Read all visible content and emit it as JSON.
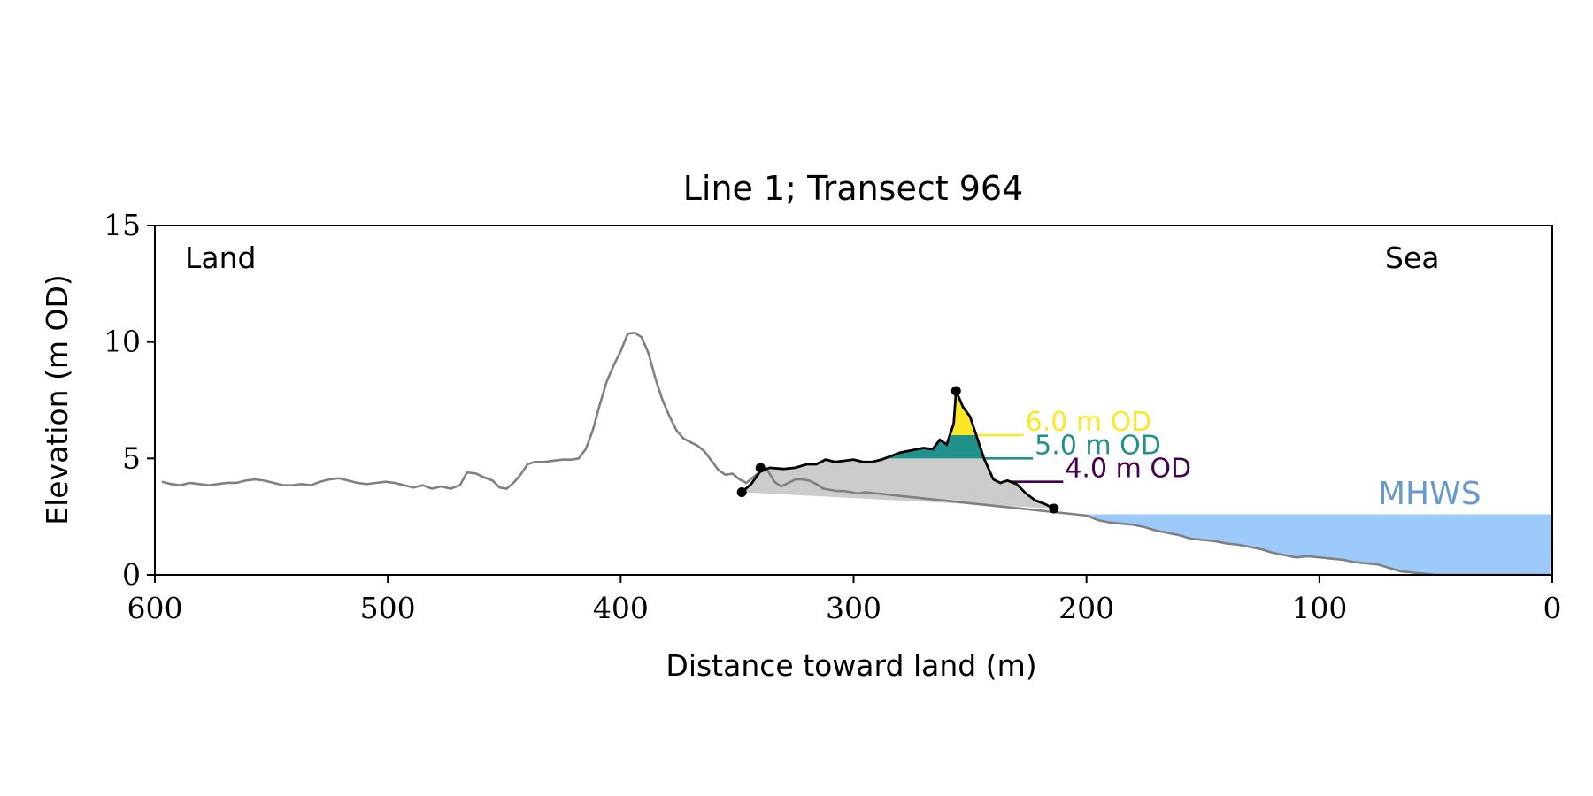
{
  "chart_data": {
    "type": "area",
    "title": "Line 1; Transect 964",
    "xlabel": "Distance toward land (m)",
    "ylabel": "Elevation (m OD)",
    "xlim": [
      600,
      0
    ],
    "ylim": [
      0,
      15
    ],
    "x_reversed": true,
    "grid": false,
    "xticks": [
      600,
      500,
      400,
      300,
      200,
      100,
      0
    ],
    "yticks": [
      0,
      5,
      10,
      15
    ],
    "corner_labels": {
      "left": "Land",
      "right": "Sea"
    },
    "mhws": {
      "label": "MHWS",
      "elevation": 2.6,
      "x_from": 200,
      "x_to": 0,
      "color": "#9ccafb",
      "label_color": "#6699cc"
    },
    "profile_color": "#808080",
    "profile": [
      [
        597,
        4.0
      ],
      [
        593,
        3.9
      ],
      [
        589,
        3.85
      ],
      [
        585,
        3.95
      ],
      [
        581,
        3.9
      ],
      [
        577,
        3.85
      ],
      [
        573,
        3.9
      ],
      [
        569,
        3.95
      ],
      [
        565,
        3.95
      ],
      [
        561,
        4.05
      ],
      [
        557,
        4.1
      ],
      [
        553,
        4.05
      ],
      [
        549,
        3.95
      ],
      [
        545,
        3.85
      ],
      [
        541,
        3.85
      ],
      [
        537,
        3.9
      ],
      [
        533,
        3.85
      ],
      [
        529,
        4.0
      ],
      [
        525,
        4.1
      ],
      [
        521,
        4.15
      ],
      [
        517,
        4.05
      ],
      [
        513,
        3.95
      ],
      [
        509,
        3.9
      ],
      [
        505,
        3.95
      ],
      [
        501,
        4.0
      ],
      [
        497,
        3.95
      ],
      [
        493,
        3.85
      ],
      [
        489,
        3.75
      ],
      [
        485,
        3.85
      ],
      [
        481,
        3.7
      ],
      [
        477,
        3.8
      ],
      [
        473,
        3.7
      ],
      [
        469,
        3.85
      ],
      [
        466,
        4.4
      ],
      [
        462,
        4.35
      ],
      [
        459,
        4.2
      ],
      [
        455,
        4.05
      ],
      [
        452,
        3.75
      ],
      [
        449,
        3.7
      ],
      [
        446,
        3.95
      ],
      [
        443,
        4.3
      ],
      [
        440,
        4.75
      ],
      [
        437,
        4.85
      ],
      [
        433,
        4.85
      ],
      [
        429,
        4.9
      ],
      [
        425,
        4.95
      ],
      [
        421,
        4.95
      ],
      [
        418,
        5.0
      ],
      [
        415,
        5.4
      ],
      [
        412,
        6.2
      ],
      [
        409,
        7.3
      ],
      [
        406,
        8.3
      ],
      [
        403,
        9.0
      ],
      [
        400,
        9.6
      ],
      [
        397,
        10.35
      ],
      [
        394,
        10.4
      ],
      [
        391,
        10.2
      ],
      [
        388,
        9.5
      ],
      [
        385,
        8.4
      ],
      [
        382,
        7.5
      ],
      [
        379,
        6.8
      ],
      [
        376,
        6.2
      ],
      [
        373,
        5.85
      ],
      [
        370,
        5.7
      ],
      [
        367,
        5.55
      ],
      [
        364,
        5.3
      ],
      [
        361,
        4.9
      ],
      [
        358,
        4.5
      ],
      [
        355,
        4.3
      ],
      [
        352,
        4.35
      ],
      [
        349,
        4.1
      ],
      [
        346,
        3.95
      ],
      [
        343,
        4.2
      ],
      [
        340,
        4.45
      ],
      [
        337,
        4.5
      ],
      [
        334,
        4.0
      ],
      [
        331,
        3.8
      ],
      [
        328,
        3.95
      ],
      [
        325,
        4.1
      ],
      [
        322,
        4.1
      ],
      [
        319,
        4.05
      ],
      [
        316,
        3.9
      ],
      [
        313,
        3.7
      ],
      [
        310,
        3.65
      ],
      [
        307,
        3.6
      ],
      [
        304,
        3.6
      ],
      [
        301,
        3.55
      ],
      [
        298,
        3.5
      ],
      [
        295,
        3.55
      ],
      [
        200,
        2.55
      ],
      [
        195,
        2.35
      ],
      [
        190,
        2.25
      ],
      [
        185,
        2.2
      ],
      [
        180,
        2.15
      ],
      [
        175,
        2.05
      ],
      [
        170,
        1.9
      ],
      [
        165,
        1.8
      ],
      [
        160,
        1.7
      ],
      [
        155,
        1.55
      ],
      [
        150,
        1.5
      ],
      [
        145,
        1.45
      ],
      [
        140,
        1.35
      ],
      [
        135,
        1.3
      ],
      [
        130,
        1.2
      ],
      [
        125,
        1.1
      ],
      [
        120,
        0.95
      ],
      [
        115,
        0.85
      ],
      [
        110,
        0.75
      ],
      [
        105,
        0.8
      ],
      [
        100,
        0.75
      ],
      [
        95,
        0.7
      ],
      [
        90,
        0.65
      ],
      [
        85,
        0.55
      ],
      [
        80,
        0.5
      ],
      [
        75,
        0.45
      ],
      [
        70,
        0.3
      ],
      [
        65,
        0.15
      ],
      [
        60,
        0.1
      ],
      [
        55,
        0.05
      ],
      [
        50,
        0.0
      ],
      [
        40,
        0.0
      ],
      [
        30,
        0.0
      ],
      [
        20,
        0.0
      ],
      [
        10,
        0.0
      ],
      [
        1,
        0.0
      ]
    ],
    "dune_color": "#000000",
    "dune": [
      [
        348,
        3.55
      ],
      [
        344,
        3.9
      ],
      [
        340,
        4.45
      ],
      [
        336,
        4.6
      ],
      [
        330,
        4.55
      ],
      [
        325,
        4.6
      ],
      [
        320,
        4.75
      ],
      [
        316,
        4.75
      ],
      [
        312,
        4.95
      ],
      [
        308,
        4.85
      ],
      [
        304,
        4.9
      ],
      [
        300,
        4.95
      ],
      [
        296,
        4.85
      ],
      [
        292,
        4.85
      ],
      [
        288,
        4.95
      ],
      [
        284,
        5.1
      ],
      [
        280,
        5.25
      ],
      [
        275,
        5.35
      ],
      [
        270,
        5.45
      ],
      [
        266,
        5.4
      ],
      [
        263,
        5.8
      ],
      [
        260,
        5.6
      ],
      [
        257,
        6.5
      ],
      [
        256,
        7.9
      ],
      [
        253,
        7.2
      ],
      [
        250,
        6.8
      ],
      [
        247,
        5.9
      ],
      [
        244,
        5.0
      ],
      [
        240,
        4.1
      ],
      [
        237,
        3.95
      ],
      [
        234,
        4.05
      ],
      [
        230,
        3.9
      ],
      [
        226,
        3.5
      ],
      [
        222,
        3.2
      ],
      [
        218,
        3.05
      ],
      [
        214,
        2.85
      ]
    ],
    "markers": [
      [
        348,
        3.55
      ],
      [
        340,
        4.6
      ],
      [
        256,
        7.9
      ],
      [
        214,
        2.85
      ]
    ],
    "dune_base": {
      "from": [
        348,
        3.55
      ],
      "to": [
        214,
        2.85
      ],
      "color": "#cccccc"
    },
    "thresholds": [
      {
        "label": "4.0 m OD",
        "elevation": 4.0,
        "color": "#440154",
        "line_x_to": 210,
        "label_x": 210
      },
      {
        "label": "5.0 m OD",
        "elevation": 5.0,
        "color": "#21918c",
        "line_x_to": 223,
        "label_x": 223
      },
      {
        "label": "6.0 m OD",
        "elevation": 6.0,
        "color": "#fde725",
        "line_x_to": 227,
        "label_x": 227
      }
    ]
  }
}
